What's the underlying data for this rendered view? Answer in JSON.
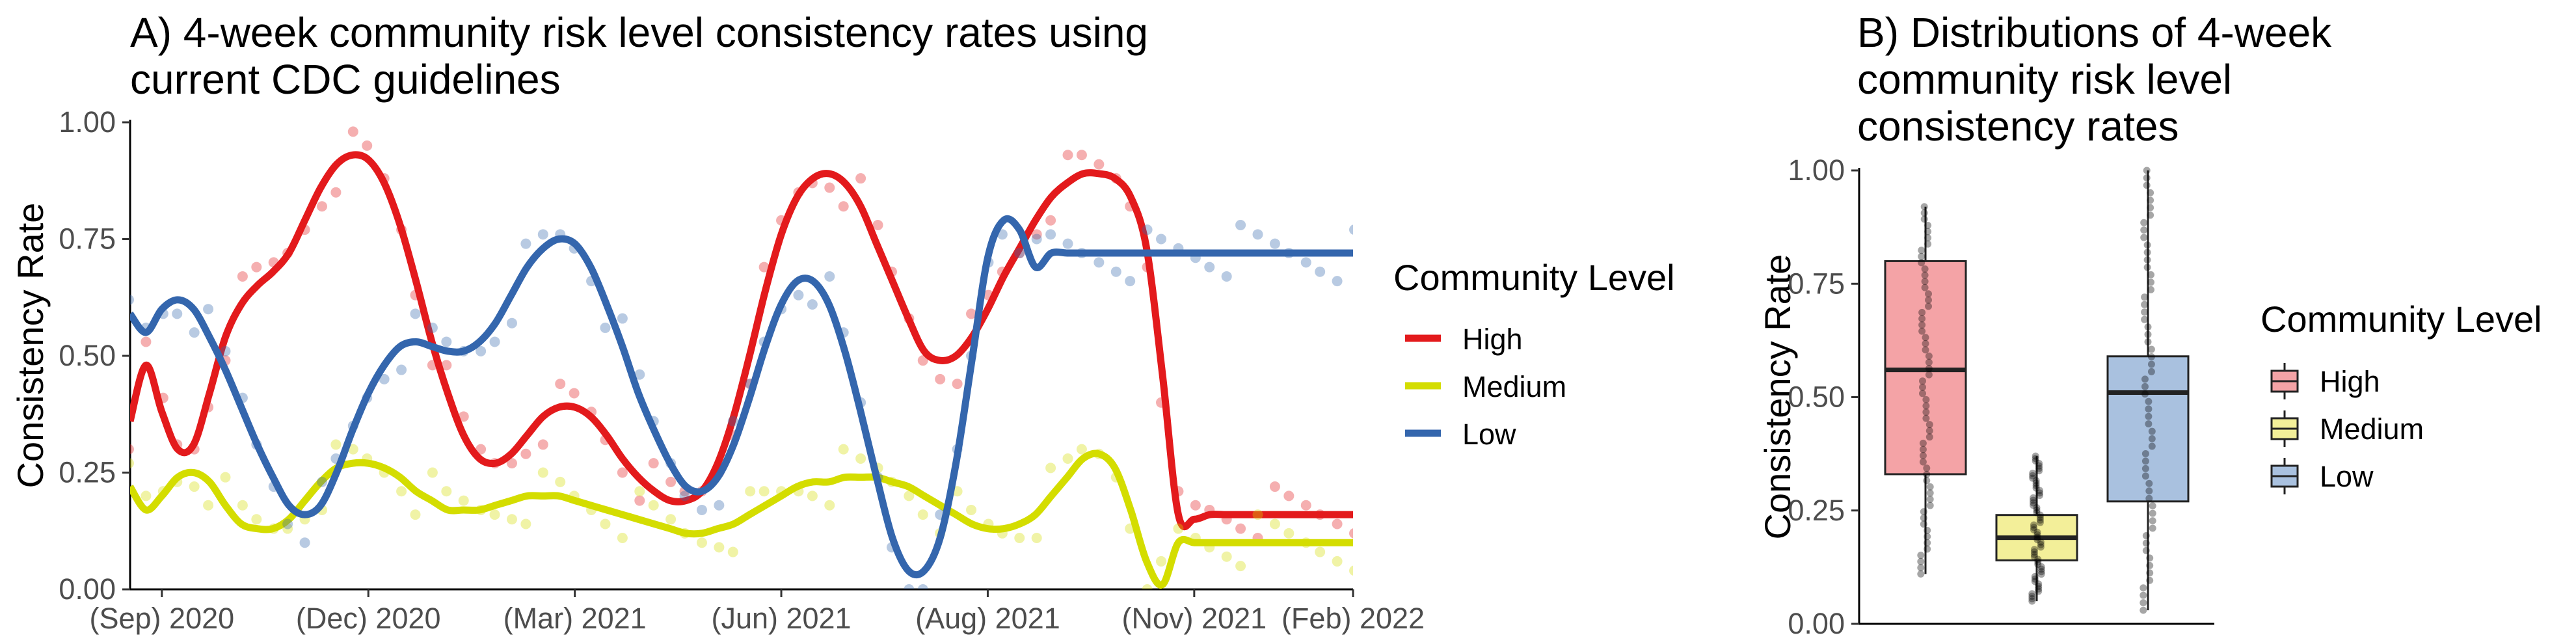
{
  "panel_a": {
    "title_line1": "A) 4-week community risk level consistency rates using",
    "title_line2": "current CDC guidelines",
    "ylabel": "Consistency Rate",
    "legend_title": "Community Level"
  },
  "panel_b": {
    "title_line1": "B) Distributions of 4-week",
    "title_line2": "community risk level",
    "title_line3": "consistency rates",
    "ylabel": "Consistency Rate",
    "legend_title": "Community Level"
  },
  "colors": {
    "High": "#e31a1c",
    "Medium": "#d4dd00",
    "Low": "#3466ad",
    "High_fill": "#f4a3a6",
    "Medium_fill": "#f3ef99",
    "Low_fill": "#a9c1df"
  },
  "chart_data": [
    {
      "type": "line",
      "title": "A) 4-week community risk level consistency rates using current CDC guidelines",
      "xlabel": "",
      "ylabel": "Consistency Rate",
      "ylim": [
        0,
        1
      ],
      "yticks": [
        "0.00",
        "0.25",
        "0.50",
        "0.75",
        "1.00"
      ],
      "xlim": [
        0,
        77
      ],
      "xticks": [
        {
          "x": 2,
          "label": "(Sep) 2020"
        },
        {
          "x": 15,
          "label": "(Dec) 2020"
        },
        {
          "x": 28,
          "label": "(Mar) 2021"
        },
        {
          "x": 41,
          "label": "(Jun) 2021"
        },
        {
          "x": 54,
          "label": "(Aug) 2021"
        },
        {
          "x": 67,
          "label": "(Nov) 2021"
        },
        {
          "x": 80,
          "label": "(Feb) 2022"
        }
      ],
      "legend_position": "right",
      "series": [
        {
          "name": "High",
          "x": [
            0,
            1,
            2,
            3,
            4,
            5,
            6,
            7,
            8,
            9,
            10,
            11,
            12,
            13,
            14,
            15,
            16,
            17,
            18,
            19,
            20,
            21,
            22,
            23,
            24,
            25,
            26,
            27,
            28,
            29,
            30,
            31,
            32,
            33,
            34,
            35,
            36,
            37,
            38,
            39,
            40,
            41,
            42,
            43,
            44,
            45,
            46,
            47,
            48,
            49,
            50,
            51,
            52,
            53,
            54,
            55,
            56,
            57,
            58,
            59,
            60,
            61,
            62,
            63,
            64,
            65,
            66,
            67,
            68,
            69,
            70,
            71,
            72,
            73,
            74,
            75,
            76,
            77
          ],
          "values": [
            0.36,
            0.48,
            0.38,
            0.3,
            0.31,
            0.42,
            0.54,
            0.61,
            0.65,
            0.68,
            0.72,
            0.79,
            0.86,
            0.91,
            0.93,
            0.92,
            0.87,
            0.78,
            0.66,
            0.53,
            0.42,
            0.33,
            0.28,
            0.27,
            0.29,
            0.33,
            0.37,
            0.39,
            0.39,
            0.37,
            0.33,
            0.28,
            0.24,
            0.21,
            0.19,
            0.19,
            0.21,
            0.27,
            0.37,
            0.5,
            0.64,
            0.76,
            0.84,
            0.88,
            0.89,
            0.87,
            0.82,
            0.74,
            0.66,
            0.58,
            0.51,
            0.49,
            0.5,
            0.54,
            0.6,
            0.67,
            0.73,
            0.79,
            0.84,
            0.87,
            0.89,
            0.89,
            0.88,
            0.84,
            0.73,
            0.46,
            0.16,
            0.15,
            0.16,
            0.16,
            0.16,
            0.16,
            0.16,
            0.16,
            0.16,
            0.16,
            0.16,
            0.16
          ]
        },
        {
          "name": "Medium",
          "x": [
            0,
            1,
            2,
            3,
            4,
            5,
            6,
            7,
            8,
            9,
            10,
            11,
            12,
            13,
            14,
            15,
            16,
            17,
            18,
            19,
            20,
            21,
            22,
            23,
            24,
            25,
            26,
            27,
            28,
            29,
            30,
            31,
            32,
            33,
            34,
            35,
            36,
            37,
            38,
            39,
            40,
            41,
            42,
            43,
            44,
            45,
            46,
            47,
            48,
            49,
            50,
            51,
            52,
            53,
            54,
            55,
            56,
            57,
            58,
            59,
            60,
            61,
            62,
            63,
            64,
            65,
            66,
            67,
            68,
            69,
            70,
            71,
            72,
            73,
            74,
            75,
            76,
            77
          ],
          "values": [
            0.22,
            0.17,
            0.2,
            0.24,
            0.25,
            0.23,
            0.18,
            0.14,
            0.13,
            0.13,
            0.15,
            0.19,
            0.23,
            0.26,
            0.27,
            0.27,
            0.26,
            0.24,
            0.21,
            0.19,
            0.17,
            0.17,
            0.17,
            0.18,
            0.19,
            0.2,
            0.2,
            0.2,
            0.19,
            0.18,
            0.17,
            0.16,
            0.15,
            0.14,
            0.13,
            0.12,
            0.12,
            0.13,
            0.14,
            0.16,
            0.18,
            0.2,
            0.22,
            0.23,
            0.23,
            0.24,
            0.24,
            0.24,
            0.23,
            0.22,
            0.2,
            0.18,
            0.16,
            0.14,
            0.13,
            0.13,
            0.14,
            0.16,
            0.2,
            0.24,
            0.28,
            0.29,
            0.26,
            0.17,
            0.06,
            0.01,
            0.1,
            0.1,
            0.1,
            0.1,
            0.1,
            0.1,
            0.1,
            0.1,
            0.1,
            0.1,
            0.1,
            0.1
          ]
        },
        {
          "name": "Low",
          "x": [
            0,
            1,
            2,
            3,
            4,
            5,
            6,
            7,
            8,
            9,
            10,
            11,
            12,
            13,
            14,
            15,
            16,
            17,
            18,
            19,
            20,
            21,
            22,
            23,
            24,
            25,
            26,
            27,
            28,
            29,
            30,
            31,
            32,
            33,
            34,
            35,
            36,
            37,
            38,
            39,
            40,
            41,
            42,
            43,
            44,
            45,
            46,
            47,
            48,
            49,
            50,
            51,
            52,
            53,
            54,
            55,
            56,
            57,
            58,
            59,
            60,
            61,
            62,
            63,
            64,
            65,
            66,
            67,
            68,
            69,
            70,
            71,
            72,
            73,
            74,
            75,
            76,
            77
          ],
          "values": [
            0.59,
            0.55,
            0.6,
            0.62,
            0.6,
            0.54,
            0.47,
            0.39,
            0.31,
            0.24,
            0.18,
            0.16,
            0.18,
            0.25,
            0.34,
            0.42,
            0.48,
            0.52,
            0.53,
            0.52,
            0.51,
            0.51,
            0.53,
            0.57,
            0.63,
            0.69,
            0.73,
            0.75,
            0.74,
            0.69,
            0.61,
            0.52,
            0.42,
            0.34,
            0.27,
            0.22,
            0.21,
            0.24,
            0.31,
            0.41,
            0.52,
            0.61,
            0.66,
            0.66,
            0.61,
            0.51,
            0.38,
            0.24,
            0.11,
            0.04,
            0.04,
            0.11,
            0.27,
            0.49,
            0.71,
            0.79,
            0.77,
            0.69,
            0.72,
            0.72,
            0.72,
            0.72,
            0.72,
            0.72,
            0.72,
            0.72,
            0.72,
            0.72,
            0.72,
            0.72,
            0.72,
            0.72,
            0.72,
            0.72,
            0.72,
            0.72,
            0.72,
            0.72
          ]
        }
      ]
    },
    {
      "type": "box",
      "title": "B) Distributions of 4-week community risk level consistency rates",
      "xlabel": "",
      "ylabel": "Consistency Rate",
      "ylim": [
        0,
        1
      ],
      "yticks": [
        "0.00",
        "0.25",
        "0.50",
        "0.75",
        "1.00"
      ],
      "legend_position": "right",
      "categories": [
        "High",
        "Medium",
        "Low"
      ],
      "boxes": [
        {
          "name": "High",
          "min": 0.11,
          "q1": 0.33,
          "median": 0.56,
          "q3": 0.8,
          "max": 0.92
        },
        {
          "name": "Medium",
          "min": 0.05,
          "q1": 0.14,
          "median": 0.19,
          "q3": 0.24,
          "max": 0.37
        },
        {
          "name": "Low",
          "min": 0.03,
          "q1": 0.27,
          "median": 0.51,
          "q3": 0.59,
          "max": 1.0
        }
      ]
    }
  ]
}
